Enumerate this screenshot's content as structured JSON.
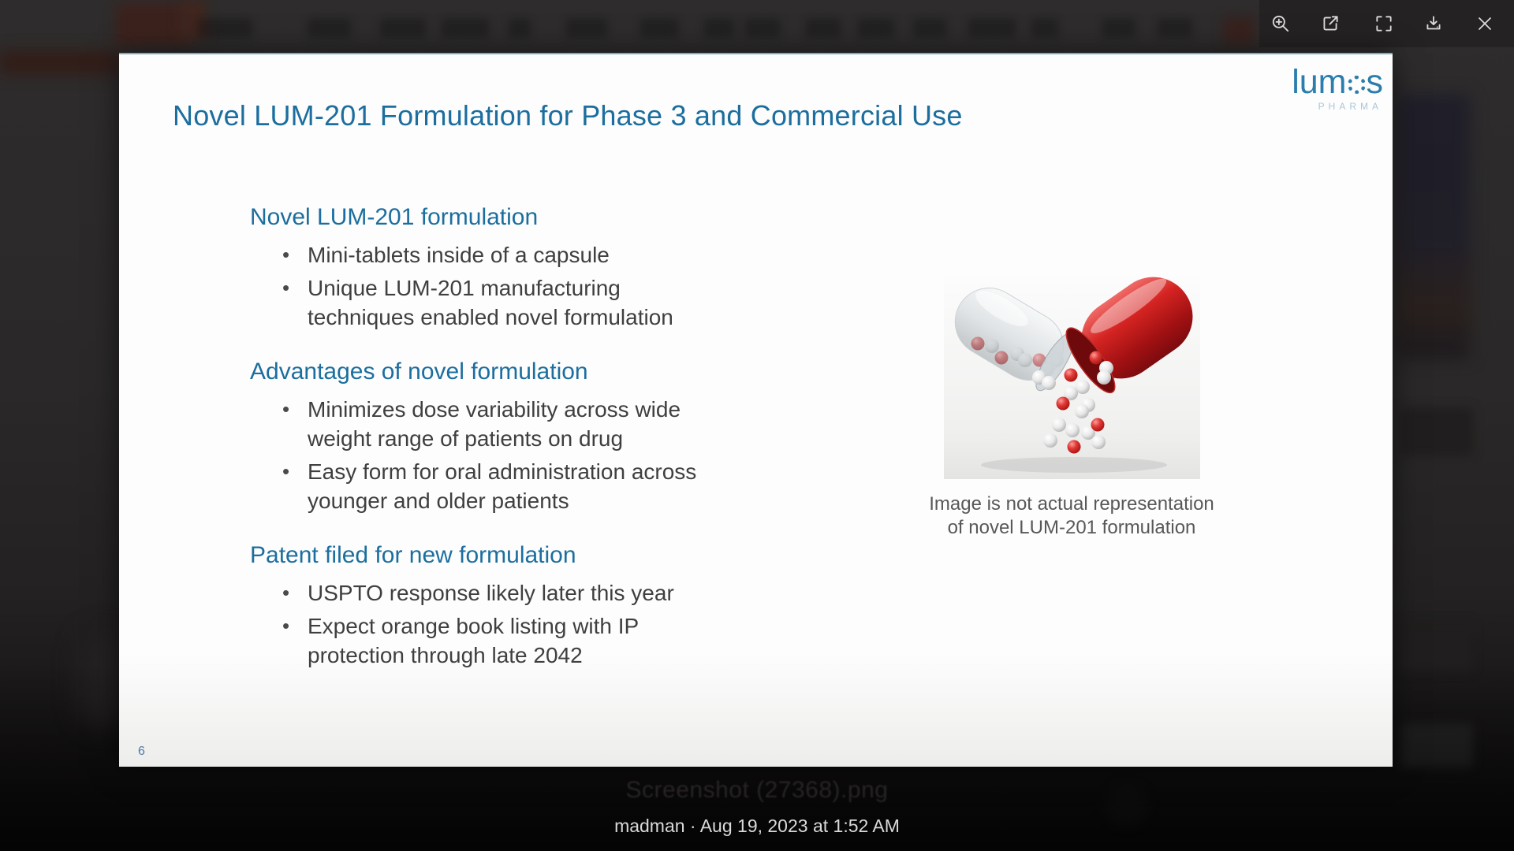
{
  "lightbox": {
    "toolbar_icons": [
      "zoom-in",
      "open-external",
      "fullscreen",
      "download",
      "close"
    ],
    "caption": "madman · Aug 19, 2023 at 1:52 AM",
    "background_filename": "Screenshot (27368).png"
  },
  "slide": {
    "title": "Novel LUM-201 Formulation for Phase 3 and Commercial Use",
    "page_number": "6",
    "logo": {
      "name": "lumos",
      "name_pre": "lum",
      "name_post": "s",
      "tagline": "PHARMA"
    },
    "sections": [
      {
        "heading": "Novel LUM-201 formulation",
        "bullets": [
          {
            "lines": [
              "Mini-tablets inside of a capsule"
            ]
          },
          {
            "lines": [
              "Unique LUM-201 manufacturing",
              "techniques enabled novel formulation"
            ]
          }
        ]
      },
      {
        "heading": "Advantages of novel formulation",
        "bullets": [
          {
            "lines": [
              "Minimizes dose variability across wide",
              "weight range of patients on drug"
            ]
          },
          {
            "lines": [
              "Easy form for oral administration across",
              "younger and older patients"
            ]
          }
        ]
      },
      {
        "heading": "Patent filed for new formulation",
        "bullets": [
          {
            "lines": [
              "USPTO response likely later this year"
            ]
          },
          {
            "lines": [
              "Expect orange book listing with IP",
              "protection through late 2042"
            ]
          }
        ]
      }
    ],
    "image_caption": {
      "line1": "Image is not actual representation",
      "line2": "of novel LUM-201 formulation"
    },
    "colors": {
      "heading_teal": "#1b6e9e",
      "body_text": "#3f3f3f",
      "logo_teal": "#2b7dad",
      "capsule_red": "#c01515"
    }
  }
}
